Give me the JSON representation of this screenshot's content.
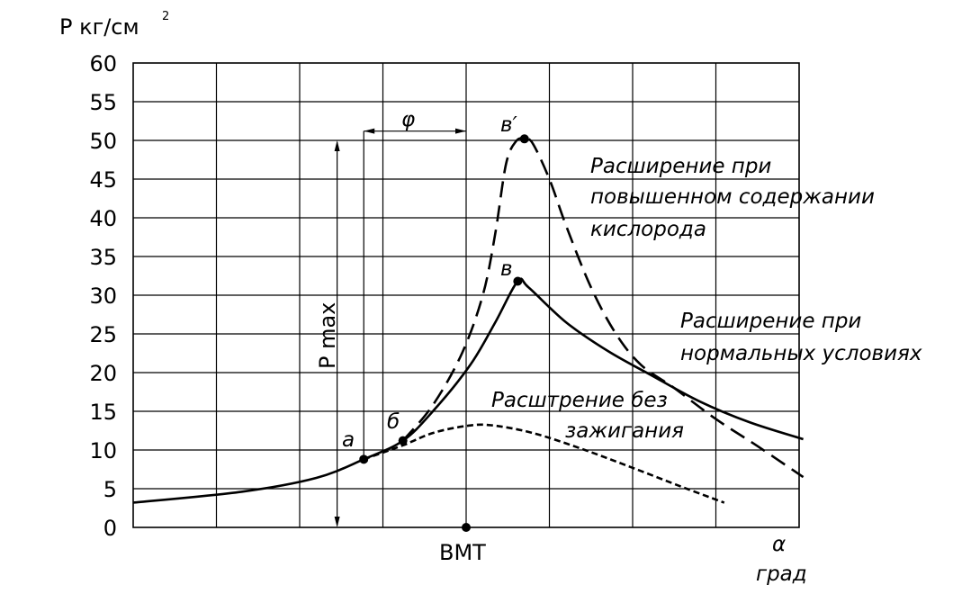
{
  "chart_data": {
    "type": "line",
    "y_unit_label": "P кг/см",
    "y_unit_superscript": "2",
    "x_label_symbol": "α",
    "x_label_unit": "град",
    "ylim": [
      0,
      60
    ],
    "yticks": [
      0,
      5,
      10,
      15,
      20,
      25,
      30,
      35,
      40,
      45,
      50,
      55,
      60
    ],
    "tdc_label": "ВМТ",
    "grid": true,
    "pmax_label": "P max",
    "phi_label": "φ",
    "point_labels": {
      "a": "a",
      "b": "б",
      "v": "в",
      "v_prime": "в′"
    },
    "series": [
      {
        "style": "solid",
        "annotation": [
          "Расширение при",
          "нормальных условиях"
        ],
        "points": [
          [
            0,
            3.2
          ],
          [
            1.3,
            4.6
          ],
          [
            2.2,
            6.4
          ],
          [
            2.77,
            8.8
          ],
          [
            3.24,
            11.2
          ],
          [
            3.6,
            15
          ],
          [
            4.05,
            21
          ],
          [
            4.35,
            26.5
          ],
          [
            4.62,
            31.8
          ],
          [
            4.75,
            31.0
          ],
          [
            5.2,
            26.5
          ],
          [
            5.7,
            22.8
          ],
          [
            6.2,
            19.8
          ],
          [
            6.8,
            16.3
          ],
          [
            7.4,
            13.6
          ],
          [
            8.05,
            11.4
          ]
        ]
      },
      {
        "style": "dashed",
        "annotation": [
          "Расширение при",
          "повышенном содержании",
          "кислорода"
        ],
        "points": [
          [
            3.24,
            11.2
          ],
          [
            3.6,
            15.8
          ],
          [
            3.95,
            22.5
          ],
          [
            4.2,
            30
          ],
          [
            4.35,
            38
          ],
          [
            4.48,
            47
          ],
          [
            4.6,
            49.9
          ],
          [
            4.7,
            50.2
          ],
          [
            4.8,
            49.6
          ],
          [
            5.0,
            45
          ],
          [
            5.2,
            39
          ],
          [
            5.5,
            31
          ],
          [
            5.8,
            25
          ],
          [
            6.1,
            21
          ],
          [
            6.5,
            18
          ],
          [
            7.0,
            14
          ],
          [
            7.5,
            10.5
          ],
          [
            8.05,
            6.5
          ]
        ]
      },
      {
        "style": "short-dashed",
        "annotation": [
          "Расштрение без",
          "зажигания"
        ],
        "points": [
          [
            2.77,
            8.8
          ],
          [
            3.24,
            10.6
          ],
          [
            3.6,
            12.2
          ],
          [
            4.0,
            13.1
          ],
          [
            4.3,
            13.2
          ],
          [
            4.8,
            12.2
          ],
          [
            5.4,
            10.1
          ],
          [
            6.0,
            7.7
          ],
          [
            6.6,
            5.2
          ],
          [
            7.1,
            3.2
          ]
        ]
      }
    ],
    "markers": [
      {
        "label_key": "a",
        "x": 2.77,
        "y": 8.8
      },
      {
        "label_key": "b",
        "x": 3.24,
        "y": 11.2
      },
      {
        "label_key": "v",
        "x": 4.62,
        "y": 31.8
      },
      {
        "label_key": "v_prime",
        "x": 4.7,
        "y": 50.2
      }
    ],
    "xlim": [
      0,
      8.05
    ],
    "tdc_x": 4.0,
    "ignition_x": 2.77,
    "pmax_line_x": 2.45
  }
}
